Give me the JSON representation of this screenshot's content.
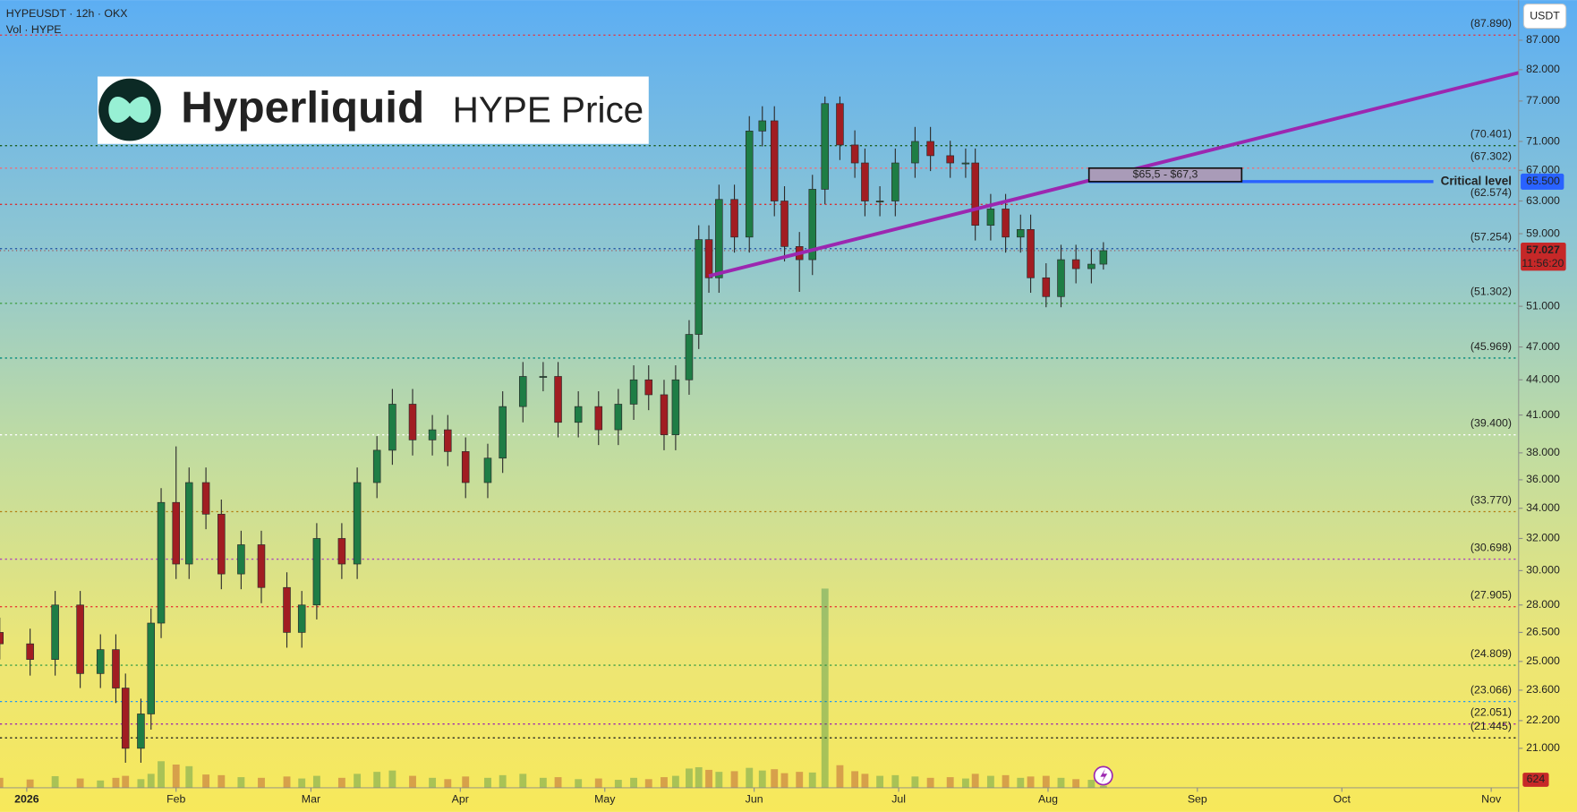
{
  "chart_data": {
    "type": "candlestick",
    "title": "HYPEUSDT · 12h · OKX",
    "subtitle": "Vol · HYPE",
    "currency": "USDT",
    "logo": {
      "name": "Hyperliquid",
      "suffix": "HYPE Price"
    },
    "log_scale": true,
    "grid": false,
    "up_color": "#1e7d45",
    "down_color": "#a11d22",
    "x": [
      -5.6,
      0.7,
      5.9,
      11.1,
      15.3,
      18.5,
      20.5,
      23.7,
      25.8,
      27.9,
      31,
      33.7,
      37.2,
      40.4,
      44.5,
      48.7,
      54,
      57.1,
      60.2,
      65.4,
      68.6,
      72.7,
      75.9,
      80.1,
      84.2,
      87.4,
      91.1,
      95.7,
      98.8,
      103,
      107.2,
      110.3,
      114.5,
      118.7,
      122.8,
      126,
      129.1,
      132.3,
      134.7,
      137.5,
      139.5,
      141.6,
      143.7,
      146.9,
      150,
      152.7,
      155.2,
      157.3,
      160.4,
      163.1,
      165.7,
      168.8,
      171.9,
      174,
      177.1,
      180.3,
      184.4,
      187.6,
      191.7,
      194.9,
      196.9,
      200.1,
      203.2,
      206.3,
      208.4,
      211.6,
      214.7,
      217.8,
      221,
      223.5
    ],
    "open": [
      26.5,
      25.9,
      25.1,
      28,
      24.4,
      25.6,
      23.7,
      21,
      22.5,
      27,
      34.4,
      30.4,
      35.8,
      33.6,
      29.8,
      31.6,
      29,
      26.5,
      28,
      32,
      30.4,
      35.8,
      38.2,
      41.9,
      39,
      39.8,
      38.1,
      35.8,
      37.6,
      41.7,
      44.3,
      44.3,
      40.4,
      41.7,
      39.8,
      41.9,
      44,
      42.7,
      39.4,
      44,
      48.2,
      58.3,
      54,
      63.2,
      58.6,
      72.5,
      74,
      63,
      57.5,
      56,
      64.5,
      76.6,
      70.5,
      68,
      63,
      63,
      68,
      71,
      69,
      68,
      68,
      60,
      62,
      58.6,
      59.5,
      54,
      52,
      56,
      55,
      55.5
    ],
    "high": [
      27.3,
      26.7,
      28.8,
      28.8,
      26.4,
      26.4,
      24.4,
      23.2,
      27.8,
      35.4,
      38.5,
      36.9,
      36.9,
      34.6,
      32.5,
      32.5,
      29.9,
      28.8,
      33,
      33,
      36.9,
      39.3,
      43.2,
      43.2,
      41,
      41,
      39.2,
      38.7,
      43,
      45.6,
      45.6,
      45.6,
      43,
      43,
      43.2,
      45.3,
      45.3,
      44,
      45.3,
      49.6,
      60,
      60,
      65.1,
      65.1,
      74.7,
      76.2,
      76.2,
      64.9,
      59.2,
      66.4,
      77.7,
      77.7,
      72.6,
      70,
      64.9,
      70,
      73.1,
      73.1,
      71.1,
      70,
      70,
      63.9,
      63.9,
      61.3,
      61.3,
      55.6,
      57.7,
      57.7,
      57.2,
      58
    ],
    "low": [
      25.1,
      24.3,
      24.3,
      23.7,
      23.7,
      23,
      20.4,
      20.4,
      21.8,
      26.2,
      29.5,
      29.5,
      32.6,
      28.9,
      28.9,
      28.1,
      25.7,
      25.7,
      27.2,
      29.5,
      29.5,
      34.7,
      37.1,
      37.8,
      37.8,
      37,
      34.7,
      34.7,
      36.5,
      40.4,
      43,
      39.2,
      39.2,
      38.6,
      38.6,
      40.6,
      41.4,
      38.2,
      38.2,
      42.7,
      46.8,
      52.4,
      52.4,
      56.8,
      56.8,
      70.3,
      61.1,
      55.8,
      52.5,
      54.3,
      62.6,
      68.4,
      66,
      61.1,
      61.1,
      61.1,
      66,
      66.9,
      66,
      66,
      58.2,
      58.2,
      56.8,
      56.8,
      52.4,
      50.9,
      50.9,
      53.4,
      53.4,
      54.9
    ],
    "close": [
      25.9,
      25.1,
      28,
      24.4,
      25.6,
      23.7,
      21,
      22.5,
      27,
      34.4,
      30.4,
      35.8,
      33.6,
      29.8,
      31.6,
      29,
      26.5,
      28,
      32,
      30.4,
      35.8,
      38.2,
      41.9,
      39,
      39.8,
      38.1,
      35.8,
      37.6,
      41.7,
      44.3,
      44.3,
      40.4,
      41.7,
      39.8,
      41.9,
      44,
      42.7,
      39.4,
      44,
      48.2,
      58.3,
      54,
      63.2,
      58.6,
      72.5,
      74,
      63,
      57.5,
      56,
      64.5,
      76.6,
      70.5,
      68,
      63,
      63,
      68,
      71,
      69,
      68,
      68,
      60,
      62,
      58.6,
      59.5,
      54,
      52,
      56,
      55,
      55.5,
      57.027
    ],
    "volume": [
      3000,
      2500,
      3500,
      2800,
      2200,
      3000,
      3600,
      2600,
      4200,
      8000,
      7000,
      6500,
      4000,
      3800,
      3200,
      3000,
      3400,
      2800,
      3600,
      3000,
      4200,
      4800,
      5200,
      3600,
      3000,
      2600,
      3400,
      3000,
      3800,
      4200,
      3000,
      3200,
      2600,
      2800,
      2400,
      3000,
      2600,
      3200,
      3600,
      5800,
      6200,
      5400,
      4800,
      5000,
      6000,
      5200,
      5600,
      4400,
      4800,
      4600,
      60000,
      6800,
      5000,
      4200,
      3600,
      3800,
      3400,
      3000,
      3200,
      2800,
      4200,
      3600,
      3800,
      3000,
      3400,
      3600,
      3000,
      2600,
      2400,
      624
    ],
    "xlim": [
      -5.55,
      309.7
    ],
    "xticks": [
      {
        "value": 0,
        "label": "2026"
      },
      {
        "value": 31,
        "label": "Feb"
      },
      {
        "value": 59,
        "label": "Mar"
      },
      {
        "value": 90,
        "label": "Apr"
      },
      {
        "value": 120,
        "label": "May"
      },
      {
        "value": 151,
        "label": "Jun"
      },
      {
        "value": 181,
        "label": "Jul"
      },
      {
        "value": 212,
        "label": "Aug"
      },
      {
        "value": 243,
        "label": "Sep"
      },
      {
        "value": 273,
        "label": "Oct"
      },
      {
        "value": 304,
        "label": "Nov"
      }
    ],
    "ylim": [
      19.4,
      94.3
    ],
    "yticks": [
      {
        "value": 87,
        "label": "87.000"
      },
      {
        "value": 82,
        "label": "82.000"
      },
      {
        "value": 77,
        "label": "77.000"
      },
      {
        "value": 71,
        "label": "71.000"
      },
      {
        "value": 67,
        "label": "67.000"
      },
      {
        "value": 63,
        "label": "63.000"
      },
      {
        "value": 59,
        "label": "59.000"
      },
      {
        "value": 51,
        "label": "51.000"
      },
      {
        "value": 47,
        "label": "47.000"
      },
      {
        "value": 44,
        "label": "44.000"
      },
      {
        "value": 41,
        "label": "41.000"
      },
      {
        "value": 38,
        "label": "38.000"
      },
      {
        "value": 36,
        "label": "36.000"
      },
      {
        "value": 34,
        "label": "34.000"
      },
      {
        "value": 32,
        "label": "32.000"
      },
      {
        "value": 30,
        "label": "30.000"
      },
      {
        "value": 28,
        "label": "28.000"
      },
      {
        "value": 26.5,
        "label": "26.500"
      },
      {
        "value": 25,
        "label": "25.000"
      },
      {
        "value": 23.6,
        "label": "23.600"
      },
      {
        "value": 22.2,
        "label": "22.200"
      },
      {
        "value": 21,
        "label": "21.000"
      }
    ],
    "levels": [
      {
        "value": 87.89,
        "label": "(87.890)",
        "color": "#e8323f"
      },
      {
        "value": 70.401,
        "label": "(70.401)",
        "color": "#1b5e20"
      },
      {
        "value": 67.302,
        "label": "(67.302)",
        "color": "#f06b78"
      },
      {
        "value": 62.574,
        "label": "(62.574)",
        "color": "#d83030"
      },
      {
        "value": 57.254,
        "label": "(57.254)",
        "color": "#1e4fa3"
      },
      {
        "value": 51.302,
        "label": "(51.302)",
        "color": "#43a047"
      },
      {
        "value": 45.969,
        "label": "(45.969)",
        "color": "#00897b"
      },
      {
        "value": 39.4,
        "label": "(39.400)",
        "color": "#ffffff"
      },
      {
        "value": 33.77,
        "label": "(33.770)",
        "color": "#b07d10"
      },
      {
        "value": 30.698,
        "label": "(30.698)",
        "color": "#ab47bc"
      },
      {
        "value": 27.905,
        "label": "(27.905)",
        "color": "#e53935"
      },
      {
        "value": 24.809,
        "label": "(24.809)",
        "color": "#43a047"
      },
      {
        "value": 23.066,
        "label": "(23.066)",
        "color": "#2196f3"
      },
      {
        "value": 22.051,
        "label": "(22.051)",
        "color": "#9c27b0"
      },
      {
        "value": 21.445,
        "label": "(21.445)",
        "color": "#222222"
      }
    ],
    "trendline": {
      "x": [
        141.6,
        309.7
      ],
      "y": [
        54.2,
        81.5
      ],
      "color": "#9c27b0"
    },
    "zone": {
      "x": [
        220.5,
        252.2
      ],
      "y": [
        65.5,
        67.3
      ],
      "label": "$65,5 - $67,3",
      "color": "#a99bb8"
    },
    "critical": {
      "x": [
        220.5,
        292
      ],
      "value": {
        "value": 65.5,
        "label": "65.500"
      },
      "label": "Critical level",
      "color": "#2962ff"
    },
    "countdown": "11:56:20"
  }
}
